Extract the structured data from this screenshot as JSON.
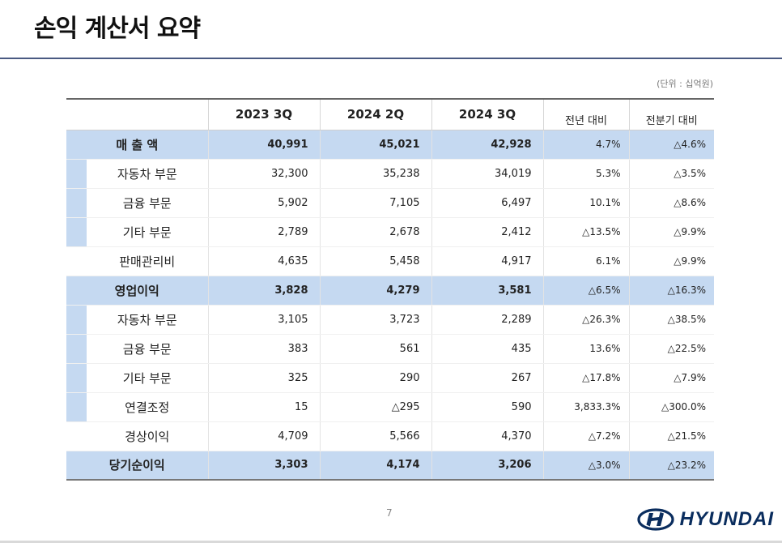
{
  "page": {
    "title": "손익 계산서 요약",
    "unit": "(단위 : 십억원)",
    "page_number": "7",
    "brand": "HYUNDAI"
  },
  "table": {
    "headers": [
      "",
      "2023 3Q",
      "2024 2Q",
      "2024 3Q",
      "전년 대비",
      "전분기 대비"
    ],
    "rows": [
      {
        "label": "매 출 액",
        "style": "highlight",
        "values": [
          "40,991",
          "45,021",
          "42,928",
          "4.7%",
          "△4.6%"
        ]
      },
      {
        "label": "자동차 부문",
        "style": "sub",
        "values": [
          "32,300",
          "35,238",
          "34,019",
          "5.3%",
          "△3.5%"
        ]
      },
      {
        "label": "금융 부문",
        "style": "sub",
        "values": [
          "5,902",
          "7,105",
          "6,497",
          "10.1%",
          "△8.6%"
        ]
      },
      {
        "label": "기타 부문",
        "style": "sub",
        "values": [
          "2,789",
          "2,678",
          "2,412",
          "△13.5%",
          "△9.9%"
        ]
      },
      {
        "label": "판매관리비",
        "style": "plain",
        "values": [
          "4,635",
          "5,458",
          "4,917",
          "6.1%",
          "△9.9%"
        ]
      },
      {
        "label": "영업이익",
        "style": "highlight",
        "values": [
          "3,828",
          "4,279",
          "3,581",
          "△6.5%",
          "△16.3%"
        ]
      },
      {
        "label": "자동차 부문",
        "style": "sub",
        "values": [
          "3,105",
          "3,723",
          "2,289",
          "△26.3%",
          "△38.5%"
        ]
      },
      {
        "label": "금융 부문",
        "style": "sub",
        "values": [
          "383",
          "561",
          "435",
          "13.6%",
          "△22.5%"
        ]
      },
      {
        "label": "기타 부문",
        "style": "sub",
        "values": [
          "325",
          "290",
          "267",
          "△17.8%",
          "△7.9%"
        ]
      },
      {
        "label": "연결조정",
        "style": "sub",
        "values": [
          "15",
          "△295",
          "590",
          "3,833.3%",
          "△300.0%"
        ]
      },
      {
        "label": "경상이익",
        "style": "plain",
        "values": [
          "4,709",
          "5,566",
          "4,370",
          "△7.2%",
          "△21.5%"
        ]
      },
      {
        "label": "당기순이익",
        "style": "highlight",
        "values": [
          "3,303",
          "4,174",
          "3,206",
          "△3.0%",
          "△23.2%"
        ]
      }
    ]
  },
  "colors": {
    "highlight": "#c5d9f1",
    "rule": "#4a5a82",
    "brand": "#0a2d5e"
  }
}
